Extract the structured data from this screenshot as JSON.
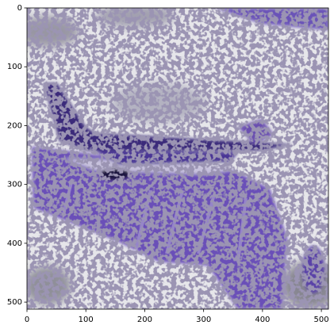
{
  "chart_data": {
    "type": "image",
    "xlim": [
      0,
      512
    ],
    "ylim": [
      512,
      0
    ],
    "xticks": [
      0,
      100,
      200,
      300,
      400,
      500
    ],
    "yticks": [
      0,
      100,
      200,
      300,
      400,
      500
    ]
  }
}
